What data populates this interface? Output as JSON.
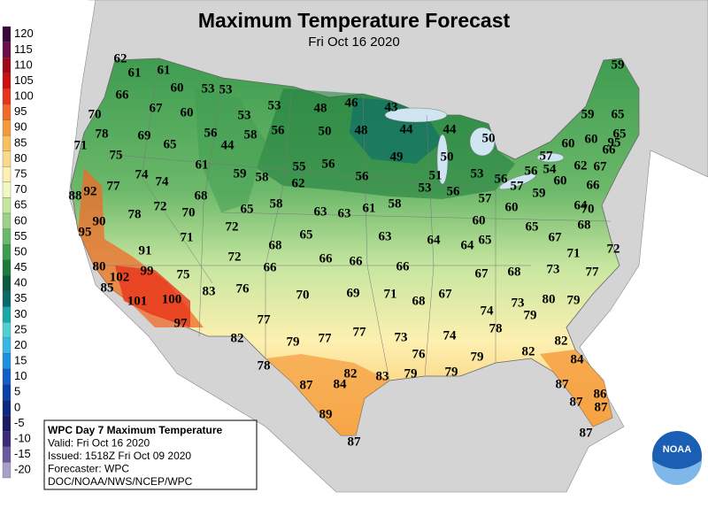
{
  "header": {
    "title": "Maximum Temperature Forecast",
    "subtitle": "Fri Oct 16 2020"
  },
  "legend": {
    "labels": [
      120,
      115,
      110,
      105,
      100,
      95,
      90,
      85,
      80,
      75,
      70,
      65,
      60,
      55,
      50,
      45,
      40,
      35,
      30,
      25,
      20,
      15,
      10,
      5,
      0,
      -5,
      -10,
      -15,
      -20
    ],
    "colors": [
      "#3a0a3a",
      "#6b0f4a",
      "#9c0a1e",
      "#cc1010",
      "#e8341c",
      "#f06a28",
      "#f59a3a",
      "#f9c060",
      "#fbd98a",
      "#fdf0b0",
      "#f2f8c4",
      "#c6e6a0",
      "#9ed08a",
      "#6cb86a",
      "#3e9c50",
      "#1c7a3a",
      "#0a5a40",
      "#0a6a6a",
      "#18a8a8",
      "#50d0d0",
      "#38b8e8",
      "#1e90e0",
      "#1060c8",
      "#0a40a8",
      "#082a80",
      "#1a1a60",
      "#3a2a78",
      "#6a5aa0",
      "#a8a0c8"
    ]
  },
  "info": {
    "lines": [
      "WPC Day 7 Maximum Temperature",
      "Valid: Fri Oct 16 2020",
      "Issued: 1518Z Fri Oct 09 2020",
      "Forecaster: WPC",
      "DOC/NOAA/NWS/NCEP/WPC"
    ]
  },
  "logo": {
    "text": "NOAA"
  },
  "temperatures": [
    62,
    61,
    61,
    60,
    53,
    53,
    66,
    67,
    60,
    53,
    53,
    48,
    46,
    43,
    70,
    78,
    69,
    65,
    56,
    58,
    56,
    50,
    48,
    44,
    44,
    50,
    59,
    59,
    65,
    60,
    60,
    95,
    65,
    66,
    71,
    75,
    44,
    61,
    59,
    58,
    55,
    56,
    56,
    49,
    50,
    51,
    53,
    56,
    57,
    56,
    54,
    57,
    60,
    62,
    67,
    66,
    74,
    74,
    77,
    92,
    88,
    68,
    62,
    58,
    58,
    53,
    56,
    57,
    59,
    60,
    72,
    70,
    78,
    90,
    65,
    63,
    63,
    61,
    60,
    65,
    64,
    64,
    63,
    65,
    65,
    67,
    68,
    64,
    70,
    95,
    71,
    72,
    68,
    91,
    72,
    66,
    66,
    66,
    66,
    71,
    72,
    80,
    99,
    75,
    102,
    85,
    101,
    100,
    83,
    76,
    70,
    69,
    71,
    68,
    67,
    67,
    68,
    73,
    77,
    80,
    79,
    73,
    79,
    74,
    97,
    77,
    82,
    79,
    77,
    77,
    73,
    74,
    78,
    82,
    82,
    84,
    76,
    79,
    79,
    78,
    87,
    84,
    82,
    83,
    79,
    87,
    86,
    87,
    87,
    89,
    87,
    87
  ]
}
